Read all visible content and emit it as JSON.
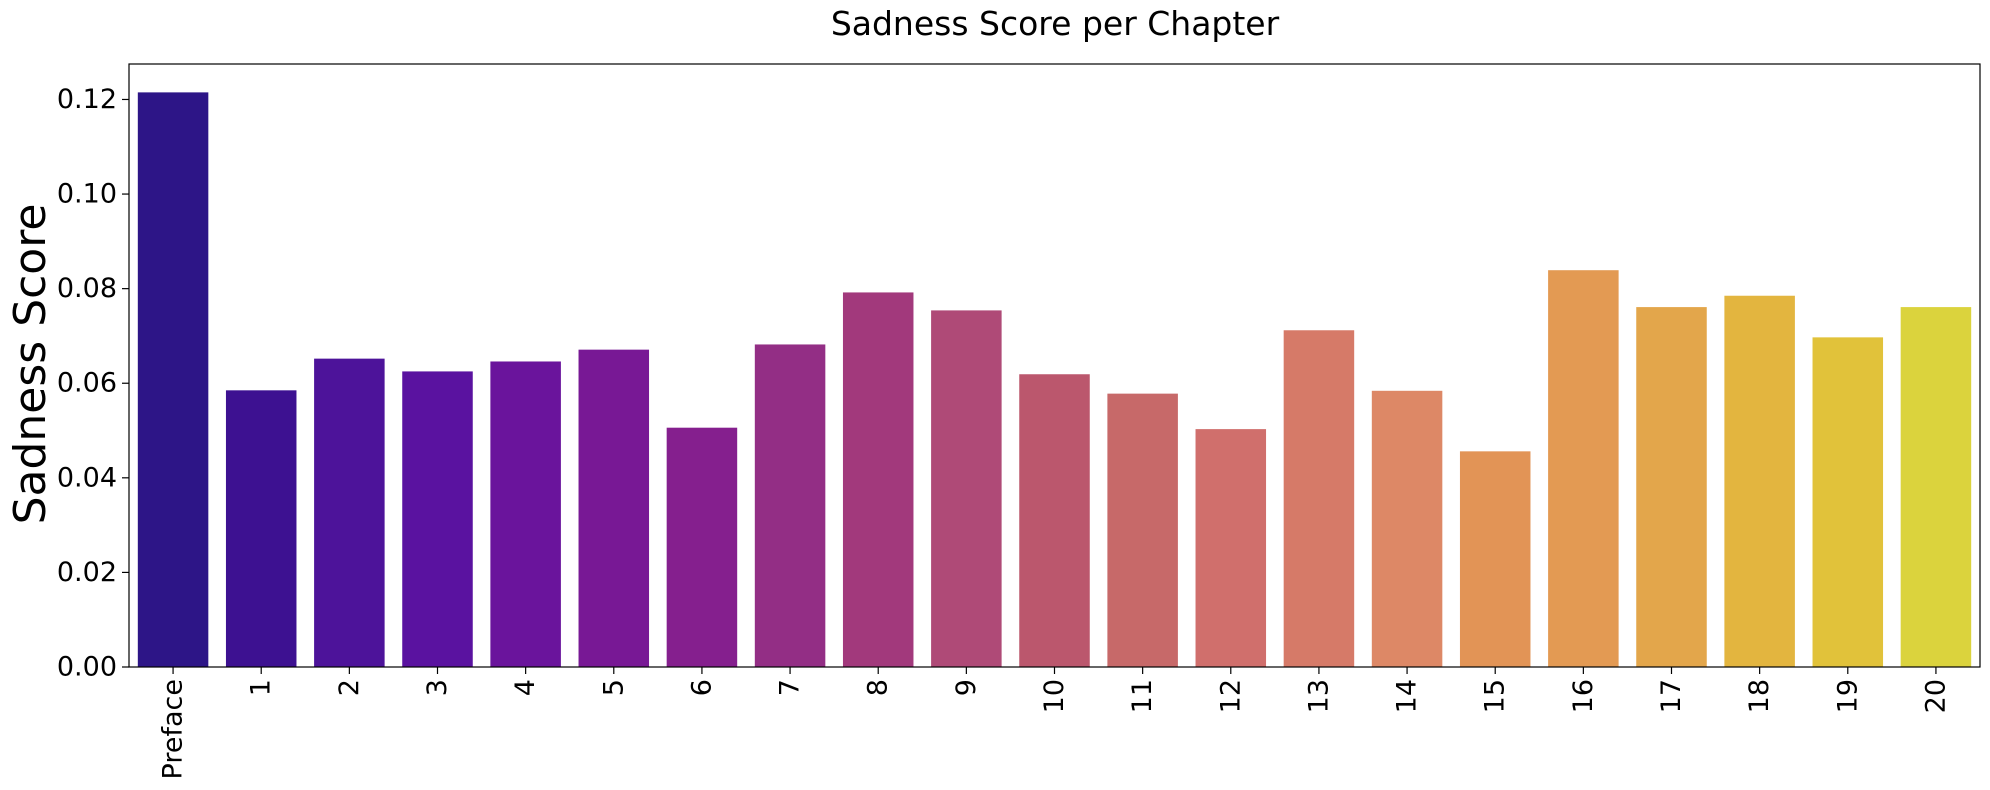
{
  "chart_data": {
    "type": "bar",
    "title": "Sadness Score per Chapter",
    "xlabel": "",
    "ylabel": "Sadness Score",
    "categories": [
      "Preface",
      "1",
      "2",
      "3",
      "4",
      "5",
      "6",
      "7",
      "8",
      "9",
      "10",
      "11",
      "12",
      "13",
      "14",
      "15",
      "16",
      "17",
      "18",
      "19",
      "20"
    ],
    "values": [
      0.1215,
      0.0585,
      0.0652,
      0.0625,
      0.0646,
      0.0671,
      0.0506,
      0.0682,
      0.0792,
      0.0754,
      0.0619,
      0.0578,
      0.0503,
      0.0712,
      0.0584,
      0.0456,
      0.0839,
      0.0761,
      0.0785,
      0.0697,
      0.0761
    ],
    "colors": [
      "#2d1587",
      "#3d1191",
      "#4d139a",
      "#5a12a0",
      "#6a149c",
      "#781895",
      "#851f8e",
      "#932e85",
      "#a2397c",
      "#af4a77",
      "#bb576d",
      "#c76969",
      "#d06f6c",
      "#d67a68",
      "#dd8866",
      "#e29456",
      "#e39a53",
      "#e3a64b",
      "#e3b53f",
      "#e1c23a",
      "#dbd33d"
    ],
    "ylim": [
      0,
      0.1275
    ],
    "yticks": [
      "0.00",
      "0.02",
      "0.04",
      "0.06",
      "0.08",
      "0.10",
      "0.12"
    ],
    "ytick_values": [
      0,
      0.02,
      0.04,
      0.06,
      0.08,
      0.1,
      0.12
    ],
    "grid": false,
    "legend": "none"
  }
}
